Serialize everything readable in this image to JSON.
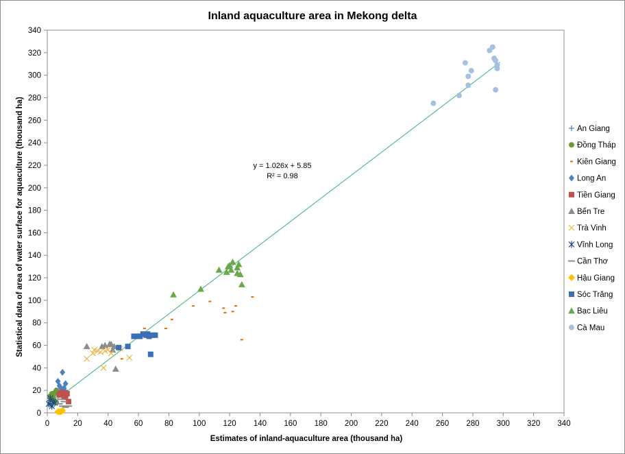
{
  "chart_data": {
    "type": "scatter",
    "title": "Inland aquaculture area in Mekong delta",
    "xlabel": "Estimates of inland-aquaculture  area (thousand  ha)",
    "ylabel": "Statistical data of area of water surface for aquaculture  (thousand  ha)",
    "xlim": [
      0,
      340
    ],
    "ylim": [
      0,
      340
    ],
    "x_ticks": [
      0,
      20,
      40,
      60,
      80,
      100,
      120,
      140,
      160,
      180,
      200,
      220,
      240,
      260,
      280,
      300,
      320,
      340
    ],
    "y_ticks": [
      0,
      20,
      40,
      60,
      80,
      100,
      120,
      140,
      160,
      180,
      200,
      220,
      240,
      260,
      280,
      300,
      320,
      340
    ],
    "grid": false,
    "legend_position": "right",
    "trendline": {
      "slope": 1.026,
      "intercept": 5.85,
      "x_range": [
        0,
        298
      ],
      "color": "#3cb371"
    },
    "equation_text": "y = 1.026x + 5.85",
    "r2_text": "R² = 0.98",
    "series": [
      {
        "name": "An Giang",
        "marker": "plus",
        "color": "#4f81bd",
        "points": [
          [
            2,
            8
          ],
          [
            3,
            12
          ],
          [
            4,
            10
          ],
          [
            5,
            14
          ],
          [
            3,
            6
          ]
        ]
      },
      {
        "name": "Đồng Tháp",
        "marker": "circle",
        "color": "#6a9a3a",
        "points": [
          [
            2,
            15
          ],
          [
            3,
            17
          ],
          [
            4,
            16
          ],
          [
            5,
            18
          ],
          [
            6,
            20
          ],
          [
            7,
            17
          ],
          [
            8,
            18
          ],
          [
            4,
            12
          ],
          [
            6,
            9
          ],
          [
            9,
            16
          ]
        ]
      },
      {
        "name": "Kiên Giang",
        "marker": "dash",
        "color": "#e26b0a",
        "points": [
          [
            49,
            48
          ],
          [
            64,
            75
          ],
          [
            67,
            70
          ],
          [
            78,
            75
          ],
          [
            82,
            83
          ],
          [
            96,
            95
          ],
          [
            107,
            99
          ],
          [
            116,
            93
          ],
          [
            117,
            89
          ],
          [
            122,
            90
          ],
          [
            124,
            95
          ],
          [
            128,
            65
          ],
          [
            135,
            103
          ]
        ]
      },
      {
        "name": "Long An",
        "marker": "diamond",
        "color": "#4f81bd",
        "points": [
          [
            7,
            28
          ],
          [
            10,
            36
          ],
          [
            12,
            26
          ],
          [
            9,
            22
          ],
          [
            11,
            20
          ],
          [
            13,
            18
          ],
          [
            8,
            24
          ],
          [
            10,
            18
          ],
          [
            11,
            22
          ]
        ]
      },
      {
        "name": "Tiền Giang",
        "marker": "square",
        "color": "#c0504d",
        "points": [
          [
            8,
            16
          ],
          [
            10,
            18
          ],
          [
            12,
            15
          ],
          [
            13,
            17
          ],
          [
            14,
            10
          ],
          [
            11,
            14
          ],
          [
            9,
            18
          ]
        ]
      },
      {
        "name": "Bến Tre",
        "marker": "triangle",
        "color": "#8c8c8c",
        "points": [
          [
            26,
            59
          ],
          [
            36,
            59
          ],
          [
            38,
            60
          ],
          [
            41,
            61
          ],
          [
            42,
            61
          ],
          [
            44,
            59
          ],
          [
            45,
            39
          ],
          [
            43,
            56
          ]
        ]
      },
      {
        "name": "Trà Vinh",
        "marker": "x",
        "color": "#e7b54a",
        "points": [
          [
            26,
            48
          ],
          [
            30,
            53
          ],
          [
            31,
            56
          ],
          [
            33,
            55
          ],
          [
            35,
            54
          ],
          [
            37,
            40
          ],
          [
            38,
            55
          ],
          [
            40,
            56
          ],
          [
            42,
            53
          ],
          [
            48,
            57
          ],
          [
            54,
            49
          ]
        ]
      },
      {
        "name": "Vĩnh Long",
        "marker": "star",
        "color": "#1f497d",
        "points": [
          [
            1,
            8
          ],
          [
            2,
            11
          ],
          [
            3,
            6
          ],
          [
            4,
            10
          ],
          [
            2,
            13
          ],
          [
            5,
            9
          ]
        ]
      },
      {
        "name": "Cần Thơ",
        "marker": "hline",
        "color": "#8c8c8c",
        "points": [
          [
            8,
            8
          ],
          [
            10,
            6
          ],
          [
            12,
            5
          ],
          [
            14,
            6
          ],
          [
            9,
            12
          ],
          [
            11,
            10
          ]
        ]
      },
      {
        "name": "Hậu Giang",
        "marker": "diamond-filled",
        "color": "#ffc000",
        "points": [
          [
            7,
            1
          ],
          [
            8,
            1
          ],
          [
            9,
            1
          ],
          [
            10,
            2
          ]
        ]
      },
      {
        "name": "Sóc Trăng",
        "marker": "square",
        "color": "#3a6fb8",
        "points": [
          [
            47,
            58
          ],
          [
            53,
            59
          ],
          [
            57,
            68
          ],
          [
            59,
            68
          ],
          [
            61,
            68
          ],
          [
            63,
            70
          ],
          [
            65,
            69
          ],
          [
            66,
            70
          ],
          [
            67,
            68
          ],
          [
            68,
            52
          ],
          [
            69,
            69
          ],
          [
            71,
            69
          ]
        ]
      },
      {
        "name": "Bạc Liêu",
        "marker": "triangle",
        "color": "#6aa84f",
        "points": [
          [
            83,
            105
          ],
          [
            101,
            110
          ],
          [
            113,
            127
          ],
          [
            118,
            125
          ],
          [
            119,
            130
          ],
          [
            120,
            131
          ],
          [
            121,
            127
          ],
          [
            122,
            134
          ],
          [
            125,
            124
          ],
          [
            125,
            129
          ],
          [
            126,
            132
          ],
          [
            127,
            123
          ],
          [
            128,
            114
          ]
        ]
      },
      {
        "name": "Cà Mau",
        "marker": "circle",
        "color": "#a5c0e0",
        "points": [
          [
            254,
            275
          ],
          [
            271,
            282
          ],
          [
            275,
            311
          ],
          [
            277,
            299
          ],
          [
            277,
            291
          ],
          [
            279,
            304
          ],
          [
            291,
            322
          ],
          [
            293,
            325
          ],
          [
            294,
            315
          ],
          [
            295,
            287
          ],
          [
            295,
            313
          ],
          [
            296,
            306
          ],
          [
            296,
            309
          ]
        ]
      }
    ]
  }
}
